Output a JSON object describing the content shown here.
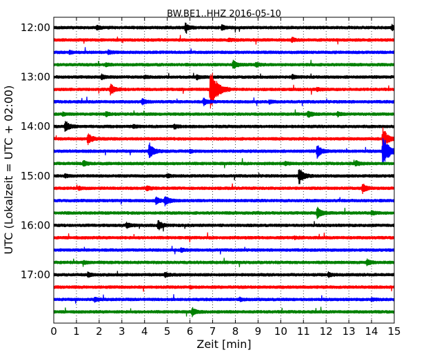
{
  "chart_data": {
    "type": "line",
    "subtype": "dayplot-seismogram",
    "title": "BW.BE1..HHZ 2016-05-10",
    "xlabel": "Zeit  [min]",
    "ylabel": "UTC (Lokalzeit = UTC + 02:00)",
    "xlim": [
      0,
      15
    ],
    "x_ticks": [
      "0",
      "1",
      "2",
      "3",
      "4",
      "5",
      "6",
      "7",
      "8",
      "9",
      "10",
      "11",
      "12",
      "13",
      "14",
      "15"
    ],
    "y_ticks": [
      {
        "label": "12:00",
        "row": 0
      },
      {
        "label": "13:00",
        "row": 4
      },
      {
        "label": "14:00",
        "row": 8
      },
      {
        "label": "15:00",
        "row": 12
      },
      {
        "label": "16:00",
        "row": 16
      },
      {
        "label": "17:00",
        "row": 20
      }
    ],
    "grid": {
      "x": true,
      "style": "dotted"
    },
    "series_colors": [
      "#000000",
      "#ff0000",
      "#0000ff",
      "#008000"
    ],
    "rows": [
      {
        "start": "12:00",
        "events": [
          [
            5.8,
            0.6
          ],
          [
            7.4,
            0.35
          ],
          [
            14.9,
            0.35
          ],
          [
            1.9,
            0.25
          ]
        ]
      },
      {
        "start": "12:15",
        "events": [
          [
            10.5,
            0.3
          ],
          [
            7.7,
            0.2
          ]
        ]
      },
      {
        "start": "12:30",
        "events": [
          [
            2.4,
            0.25
          ],
          [
            0.7,
            0.2
          ]
        ]
      },
      {
        "start": "12:45",
        "events": [
          [
            7.9,
            0.7
          ],
          [
            8.9,
            0.3
          ],
          [
            2.3,
            0.2
          ]
        ]
      },
      {
        "start": "13:00",
        "events": [
          [
            2.1,
            0.35
          ],
          [
            6.3,
            0.3
          ],
          [
            10.5,
            0.3
          ],
          [
            4.0,
            0.2
          ]
        ]
      },
      {
        "start": "13:15",
        "events": [
          [
            6.9,
            3.2
          ],
          [
            2.5,
            0.8
          ],
          [
            11.6,
            0.2
          ]
        ]
      },
      {
        "start": "13:30",
        "events": [
          [
            3.9,
            0.35
          ],
          [
            6.6,
            0.5
          ],
          [
            9.5,
            0.2
          ]
        ]
      },
      {
        "start": "13:45",
        "events": [
          [
            11.2,
            0.45
          ],
          [
            2.3,
            0.3
          ],
          [
            12.5,
            0.3
          ],
          [
            0.4,
            0.2
          ]
        ]
      },
      {
        "start": "14:00",
        "events": [
          [
            0.5,
            0.9
          ],
          [
            5.3,
            0.3
          ],
          [
            3.5,
            0.2
          ]
        ]
      },
      {
        "start": "14:15",
        "events": [
          [
            1.5,
            0.8
          ],
          [
            14.5,
            1.6
          ]
        ]
      },
      {
        "start": "14:30",
        "events": [
          [
            4.2,
            1.2
          ],
          [
            11.6,
            1.0
          ],
          [
            14.5,
            2.4
          ],
          [
            6.0,
            0.2
          ]
        ]
      },
      {
        "start": "14:45",
        "events": [
          [
            1.3,
            0.4
          ],
          [
            13.3,
            0.4
          ],
          [
            10.2,
            0.2
          ]
        ]
      },
      {
        "start": "15:00",
        "events": [
          [
            10.8,
            1.2
          ],
          [
            0.5,
            0.2
          ],
          [
            5.0,
            0.2
          ]
        ]
      },
      {
        "start": "15:15",
        "events": [
          [
            13.6,
            0.7
          ],
          [
            4.1,
            0.3
          ],
          [
            1.1,
            0.2
          ]
        ]
      },
      {
        "start": "15:30",
        "events": [
          [
            4.9,
            0.75
          ],
          [
            4.5,
            0.5
          ]
        ]
      },
      {
        "start": "15:45",
        "events": [
          [
            11.6,
            0.9
          ],
          [
            14.0,
            0.25
          ]
        ]
      },
      {
        "start": "16:00",
        "events": [
          [
            4.6,
            0.75
          ],
          [
            3.2,
            0.4
          ]
        ]
      },
      {
        "start": "16:15",
        "events": [
          [
            10.6,
            0.15
          ]
        ]
      },
      {
        "start": "16:30",
        "events": [
          [
            5.6,
            0.25
          ]
        ]
      },
      {
        "start": "16:45",
        "events": [
          [
            13.8,
            0.45
          ],
          [
            1.3,
            0.2
          ]
        ]
      },
      {
        "start": "17:00",
        "events": [
          [
            1.5,
            0.3
          ],
          [
            4.9,
            0.35
          ],
          [
            12.1,
            0.3
          ]
        ]
      },
      {
        "start": "17:15",
        "events": [
          [
            6.0,
            0.15
          ]
        ]
      },
      {
        "start": "17:30",
        "events": [
          [
            1.8,
            0.3
          ],
          [
            14.0,
            0.2
          ],
          [
            8.2,
            0.2
          ]
        ]
      },
      {
        "start": "17:45",
        "events": [
          [
            6.1,
            0.6
          ]
        ]
      }
    ]
  }
}
